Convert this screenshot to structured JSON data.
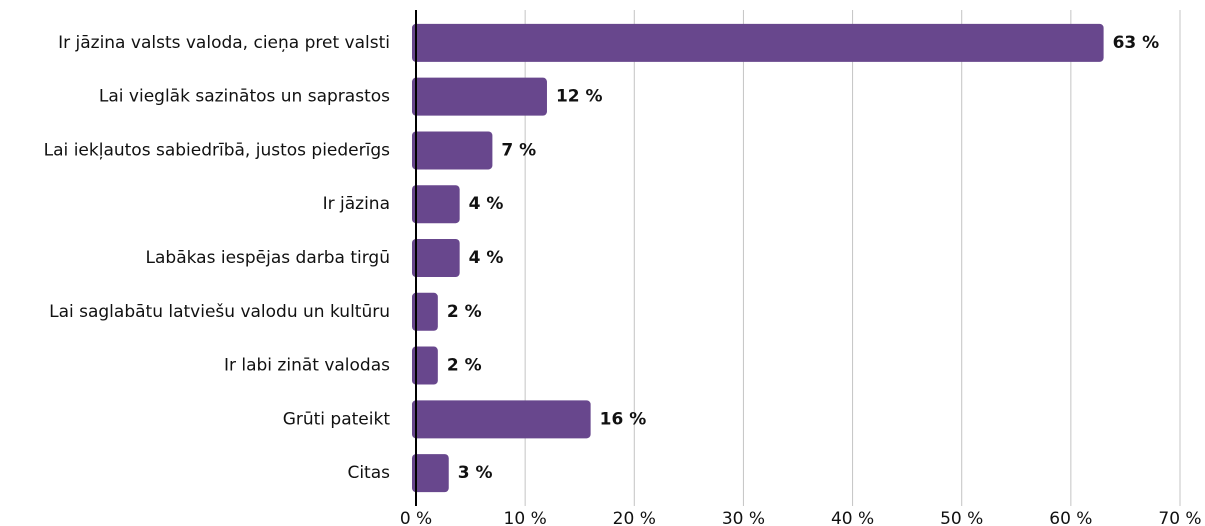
{
  "chart_data": {
    "type": "barh",
    "categories": [
      "Ir jāzina valsts valoda, cieņa pret valsti",
      "Lai vieglāk sazinātos un saprastos",
      "Lai iekļautos sabiedrībā, justos piederīgs",
      "Ir jāzina",
      "Labākas iespējas darba tirgū",
      "Lai saglabātu latviešu valodu un kultūru",
      "Ir labi zināt valodas",
      "Grūti pateikt",
      "Citas"
    ],
    "values": [
      63,
      12,
      7,
      4,
      4,
      2,
      2,
      16,
      3
    ],
    "value_labels": [
      "63 %",
      "12 %",
      "7 %",
      "4 %",
      "4 %",
      "2 %",
      "2 %",
      "16 %",
      "3 %"
    ],
    "color": "#68478d",
    "xlim": [
      0,
      70
    ],
    "xticks": [
      {
        "value": 0,
        "label": "0 %"
      },
      {
        "value": 10,
        "label": "10 %"
      },
      {
        "value": 20,
        "label": "20 %"
      },
      {
        "value": 30,
        "label": "30 %"
      },
      {
        "value": 40,
        "label": "40 %"
      },
      {
        "value": 50,
        "label": "50 %"
      },
      {
        "value": 60,
        "label": "60 %"
      },
      {
        "value": 70,
        "label": "70 %"
      }
    ],
    "grid": true
  }
}
